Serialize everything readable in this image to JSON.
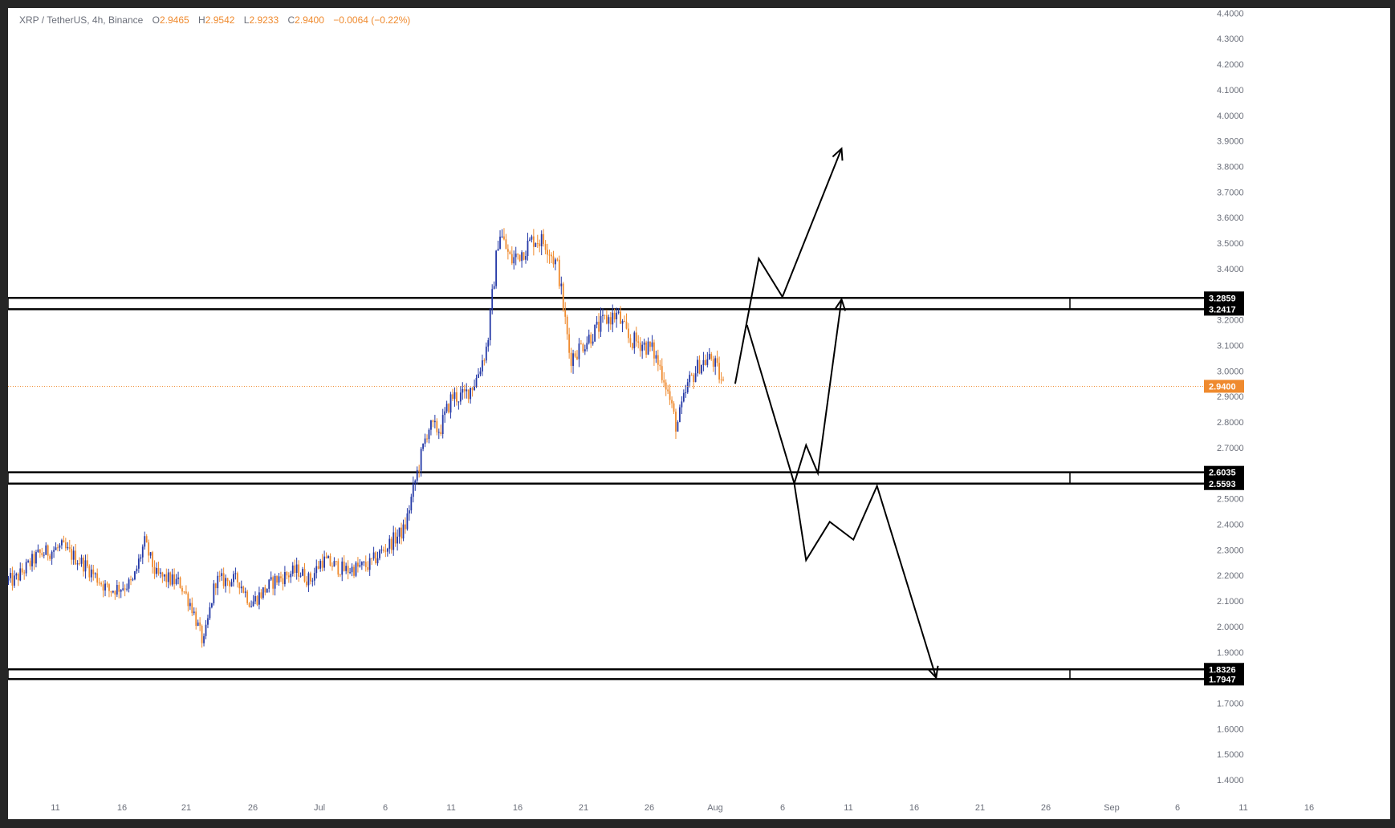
{
  "legend": {
    "symbol": "XRP / TetherUS, 4h, Binance",
    "open_label": "O",
    "open": "2.9465",
    "high_label": "H",
    "high": "2.9542",
    "low_label": "L",
    "low": "2.9233",
    "close_label": "C",
    "close": "2.9400",
    "change": "−0.0064 (−0.22%)"
  },
  "colors": {
    "up": "#2438a6",
    "down": "#ef8a2e",
    "last_price": "#ef8a2e",
    "zone_border": "#000000",
    "axis_text": "#6b6f7a"
  },
  "chart_data": {
    "type": "candlestick",
    "symbol": "XRP / TetherUS",
    "interval": "4h",
    "exchange": "Binance",
    "ylim": [
      1.35,
      4.42
    ],
    "y_ticks": [
      "4.4000",
      "4.3000",
      "4.2000",
      "4.1000",
      "4.0000",
      "3.9000",
      "3.8000",
      "3.7000",
      "3.6000",
      "3.5000",
      "3.4000",
      "3.3000",
      "3.2000",
      "3.1000",
      "3.0000",
      "2.9000",
      "2.8000",
      "2.7000",
      "2.6000",
      "2.5000",
      "2.4000",
      "2.3000",
      "2.2000",
      "2.1000",
      "2.0000",
      "1.9000",
      "1.8000",
      "1.7000",
      "1.6000",
      "1.5000",
      "1.4000"
    ],
    "x_ticks": [
      "11",
      "16",
      "21",
      "26",
      "Jul",
      "6",
      "11",
      "16",
      "21",
      "26",
      "Aug",
      "6",
      "11",
      "16",
      "21",
      "26",
      "Sep",
      "6",
      "11",
      "16"
    ],
    "price_path": [
      [
        "2025-06-07",
        2.18
      ],
      [
        "2025-06-09",
        2.28
      ],
      [
        "2025-06-11",
        2.31
      ],
      [
        "2025-06-13",
        2.24
      ],
      [
        "2025-06-15",
        2.14
      ],
      [
        "2025-06-17",
        2.17
      ],
      [
        "2025-06-18",
        2.33
      ],
      [
        "2025-06-19",
        2.2
      ],
      [
        "2025-06-21",
        2.17
      ],
      [
        "2025-06-22",
        2.08
      ],
      [
        "2025-06-23",
        1.93
      ],
      [
        "2025-06-24",
        2.18
      ],
      [
        "2025-06-26",
        2.18
      ],
      [
        "2025-06-27",
        2.09
      ],
      [
        "2025-06-29",
        2.18
      ],
      [
        "2025-06-30",
        2.2
      ],
      [
        "2025-07-01",
        2.22
      ],
      [
        "2025-07-02",
        2.18
      ],
      [
        "2025-07-03",
        2.26
      ],
      [
        "2025-07-05",
        2.22
      ],
      [
        "2025-07-07",
        2.24
      ],
      [
        "2025-07-08",
        2.29
      ],
      [
        "2025-07-10",
        2.38
      ],
      [
        "2025-07-11",
        2.59
      ],
      [
        "2025-07-12",
        2.78
      ],
      [
        "2025-07-13",
        2.77
      ],
      [
        "2025-07-14",
        2.9
      ],
      [
        "2025-07-15",
        2.9
      ],
      [
        "2025-07-16",
        2.96
      ],
      [
        "2025-07-17",
        3.1
      ],
      [
        "2025-07-18",
        3.55
      ],
      [
        "2025-07-19",
        3.43
      ],
      [
        "2025-07-20",
        3.47
      ],
      [
        "2025-07-21",
        3.52
      ],
      [
        "2025-07-22",
        3.5
      ],
      [
        "2025-07-23",
        3.4
      ],
      [
        "2025-07-24",
        3.05
      ],
      [
        "2025-07-25",
        3.1
      ],
      [
        "2025-07-26",
        3.15
      ],
      [
        "2025-07-27",
        3.2
      ],
      [
        "2025-07-28",
        3.22
      ],
      [
        "2025-07-29",
        3.12
      ],
      [
        "2025-07-30",
        3.11
      ],
      [
        "2025-07-31",
        3.08
      ],
      [
        "2025-08-01",
        2.97
      ],
      [
        "2025-08-02",
        2.78
      ],
      [
        "2025-08-03",
        2.95
      ],
      [
        "2025-08-04",
        3.03
      ],
      [
        "2025-08-05",
        3.05
      ],
      [
        "2025-08-06",
        2.94
      ]
    ],
    "last_price": 2.94,
    "zones": [
      {
        "top": 3.2859,
        "bottom": 3.2417,
        "labels": [
          "3.2859",
          "3.2417"
        ]
      },
      {
        "top": 2.6035,
        "bottom": 2.5593,
        "labels": [
          "2.6035",
          "2.5593"
        ]
      },
      {
        "top": 1.8326,
        "bottom": 1.7947,
        "labels": [
          "1.8326",
          "1.7947"
        ]
      }
    ],
    "last_price_label": "2.9400",
    "projections": [
      {
        "name": "bullish",
        "points": [
          [
            "2025-08-07",
            2.95
          ],
          [
            "2025-08-09",
            3.44
          ],
          [
            "2025-08-11",
            3.29
          ],
          [
            "2025-08-16",
            3.87
          ]
        ]
      },
      {
        "name": "range",
        "points": [
          [
            "2025-08-08",
            3.18
          ],
          [
            "2025-08-12",
            2.56
          ],
          [
            "2025-08-13",
            2.71
          ],
          [
            "2025-08-14",
            2.6
          ],
          [
            "2025-08-16",
            3.28
          ]
        ]
      },
      {
        "name": "bearish",
        "points": [
          [
            "2025-08-12",
            2.56
          ],
          [
            "2025-08-13",
            2.26
          ],
          [
            "2025-08-15",
            2.41
          ],
          [
            "2025-08-17",
            2.34
          ],
          [
            "2025-08-19",
            2.55
          ],
          [
            "2025-08-24",
            1.8
          ]
        ]
      }
    ]
  }
}
